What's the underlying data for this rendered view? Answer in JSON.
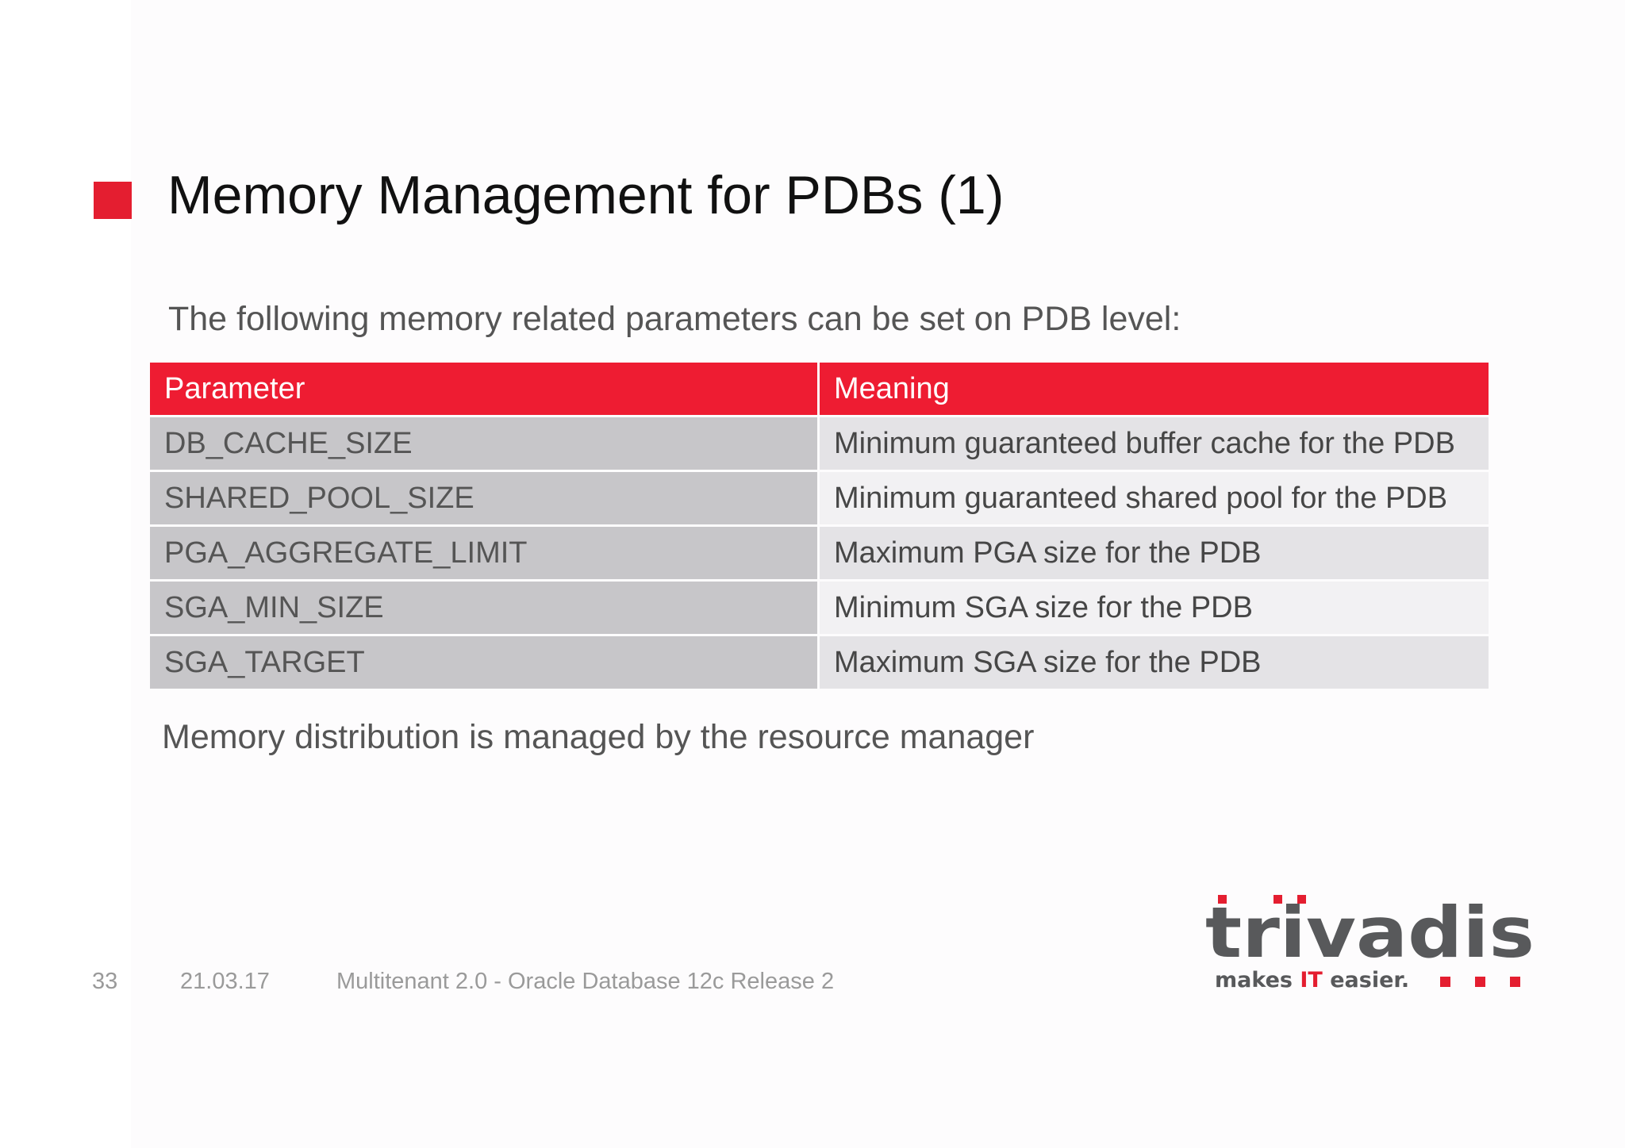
{
  "slide": {
    "title": "Memory Management for PDBs (1)",
    "intro": "The following memory related parameters can be set on PDB level:",
    "note": "Memory distribution is managed by the resource manager"
  },
  "table": {
    "headers": [
      "Parameter",
      "Meaning"
    ],
    "rows": [
      [
        "DB_CACHE_SIZE",
        "Minimum guaranteed buffer cache for the PDB"
      ],
      [
        "SHARED_POOL_SIZE",
        "Minimum guaranteed shared pool for the PDB"
      ],
      [
        "PGA_AGGREGATE_LIMIT",
        "Maximum PGA size for the PDB"
      ],
      [
        "SGA_MIN_SIZE",
        "Minimum SGA size for the PDB"
      ],
      [
        "SGA_TARGET",
        "Maximum SGA size for the PDB"
      ]
    ]
  },
  "footer": {
    "slide_number": "33",
    "date": "21.03.17",
    "presentation": "Multitenant 2.0 - Oracle Database 12c Release 2"
  },
  "logo": {
    "wordmark": "trivadis",
    "tagline_part1": "makes ",
    "tagline_highlight": "IT",
    "tagline_part2": " easier."
  },
  "colors": {
    "accent_red": "#e41e30",
    "header_red": "#ee1c32",
    "param_cell_gray": "#c7c6c9",
    "meaning_row_light": "#f2f1f3",
    "meaning_row_dark": "#e4e3e6",
    "logo_gray": "#58595b",
    "footer_gray": "#9a9a9a"
  }
}
